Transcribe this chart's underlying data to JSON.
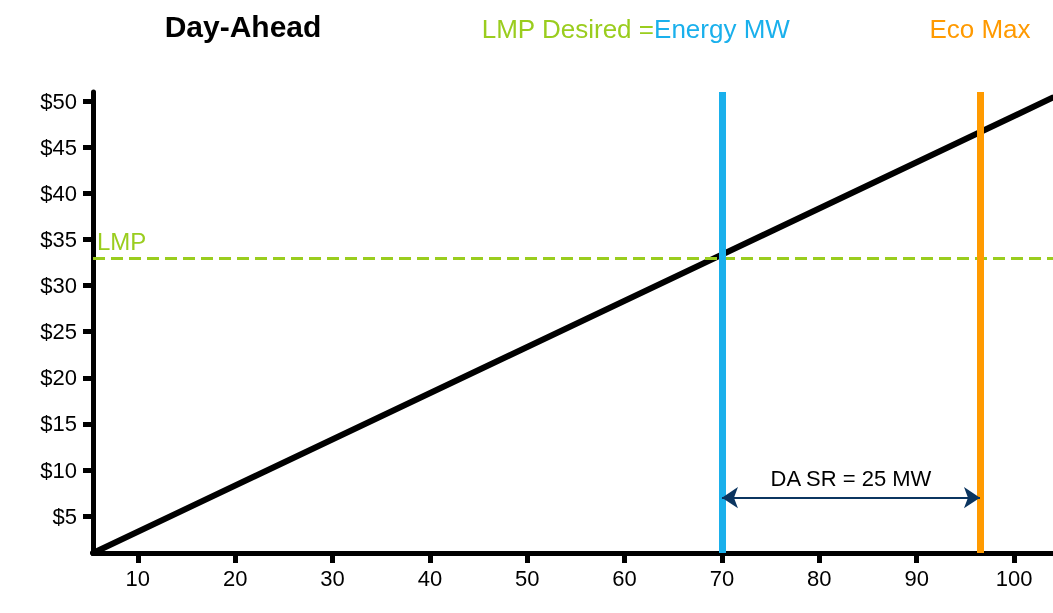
{
  "chart_data": {
    "type": "line",
    "title": "Day-Ahead",
    "x": [
      5.4,
      104
    ],
    "series": [
      {
        "color": "#000000",
        "values": [
          1,
          50.4
        ]
      }
    ],
    "xlim": [
      5.4,
      104
    ],
    "xticks": [
      10,
      20,
      30,
      40,
      50,
      60,
      70,
      80,
      90,
      100
    ],
    "ylim": [
      1,
      51
    ],
    "yticks": [
      {
        "value": 5,
        "label": "$5"
      },
      {
        "value": 10,
        "label": "$10"
      },
      {
        "value": 15,
        "label": "$15"
      },
      {
        "value": 20,
        "label": "$20"
      },
      {
        "value": 25,
        "label": "$25"
      },
      {
        "value": 30,
        "label": "$30"
      },
      {
        "value": 35,
        "label": "$35"
      },
      {
        "value": 40,
        "label": "$40"
      },
      {
        "value": 45,
        "label": "$45"
      },
      {
        "value": 50,
        "label": "$50"
      }
    ],
    "ref_lines": [
      {
        "axis": "y",
        "value": 33,
        "label": "LMP",
        "color": "#9acd1e",
        "line_style": "dashed"
      },
      {
        "axis": "x",
        "value": 70,
        "label": "Energy MW",
        "color": "#1ab0ec",
        "line_style": "solid"
      },
      {
        "axis": "x",
        "value": 96.5,
        "label": "Eco Max",
        "color": "#ff9a00",
        "line_style": "solid"
      }
    ],
    "annotations": [
      "LMP Desired =",
      "DA SR = 25 MW"
    ],
    "marker": "none",
    "line_style": "solid",
    "grid": false
  }
}
